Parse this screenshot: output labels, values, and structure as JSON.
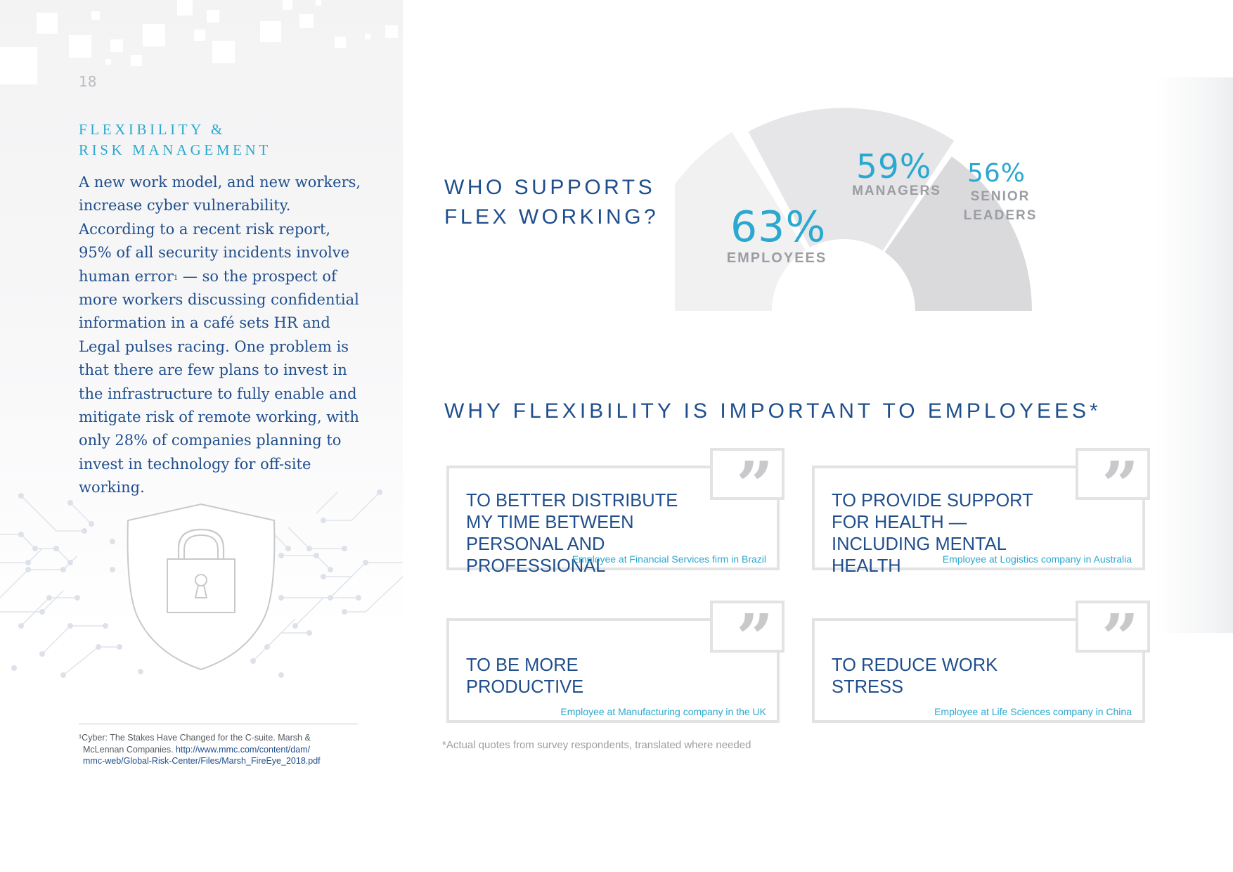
{
  "page_number": "18",
  "section": {
    "title_line1": "FLEXIBILITY &",
    "title_line2": "RISK MANAGEMENT",
    "body": "A new work model, and new workers, increase cyber vulnerability. According to a recent risk report, 95% of all security incidents involve human error",
    "body_sup": "1",
    "body_rest": " — so the prospect of more workers discussing confidential information in a café sets HR and Legal pulses racing. One problem is that there are few plans to invest in the infrastructure to fully enable and mitigate risk of remote working, with only 28% of companies planning to invest in technology for off-site working."
  },
  "footnote": {
    "text_line1": "¹Cyber: The Stakes Have Changed for the C-suite. Marsh &",
    "text_line2": "McLennan Companies. ",
    "link_part1": "http://www.mmc.com/content/dam/",
    "link_part2": "mmc-web/Global-Risk-Center/Files/Marsh_FireEye_2018.pdf"
  },
  "who_supports": {
    "title_line1": "WHO SUPPORTS",
    "title_line2": "FLEX WORKING?"
  },
  "chart_data": {
    "type": "pie",
    "title": "WHO SUPPORTS FLEX WORKING?",
    "categories": [
      "EMPLOYEES",
      "MANAGERS",
      "SENIOR LEADERS"
    ],
    "values": [
      63,
      59,
      56
    ],
    "labels": [
      "63%",
      "59%",
      "56%"
    ],
    "label_lines": [
      [
        "EMPLOYEES"
      ],
      [
        "MANAGERS"
      ],
      [
        "SENIOR",
        "LEADERS"
      ]
    ],
    "colors": [
      "#f1f1f2",
      "#e6e6e8",
      "#dadadc"
    ]
  },
  "why_flexibility": {
    "title": "WHY FLEXIBILITY IS IMPORTANT TO EMPLOYEES*",
    "quotes": [
      {
        "text": "TO BETTER DISTRIBUTE MY TIME BETWEEN PERSONAL AND PROFESSIONAL",
        "attribution": "Employee at Financial Services firm in Brazil"
      },
      {
        "text": "TO PROVIDE SUPPORT FOR HEALTH — INCLUDING MENTAL HEALTH",
        "attribution": "Employee at Logistics company in Australia"
      },
      {
        "text": "TO BE MORE PRODUCTIVE",
        "attribution": "Employee at Manufacturing company in the UK"
      },
      {
        "text": "TO REDUCE WORK STRESS",
        "attribution": "Employee at Life Sciences company in China"
      }
    ],
    "quote_glyph": "”",
    "footnote": "*Actual quotes from survey respondents, translated where needed"
  },
  "icons": {
    "shield": "shield-lock-icon",
    "quote": "quote-mark-icon",
    "circuit": "circuit-pattern"
  },
  "colors": {
    "navy": "#1f4e8c",
    "cyan": "#2aa8cf",
    "gray_text": "#9a9da2"
  }
}
